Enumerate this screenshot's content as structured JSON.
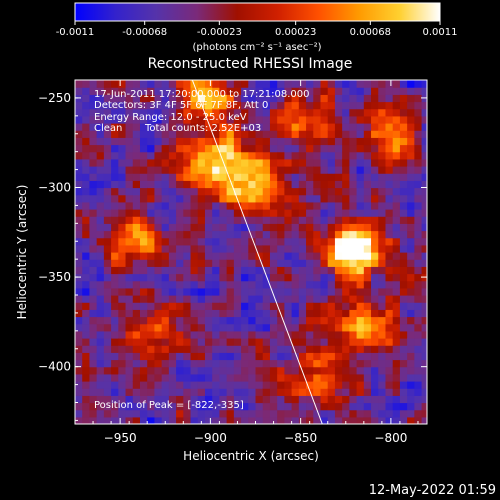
{
  "colorbar": {
    "tick_labels": [
      "-0.0011",
      "-0.00068",
      "-0.00023",
      "0.00023",
      "0.00068",
      "0.0011"
    ],
    "tick_values": [
      -0.0011,
      -0.00068,
      -0.00023,
      0.00023,
      0.00068,
      0.0011
    ],
    "range": [
      -0.0011,
      0.0011
    ],
    "unit_label": "(photons cm⁻² s⁻¹ asec⁻²)",
    "colors": [
      "#0000ff",
      "#3322cc",
      "#5533aa",
      "#7a2a7a",
      "#a01000",
      "#d02000",
      "#ff5000",
      "#ff9a00",
      "#ffd030",
      "#ffffff"
    ]
  },
  "chart_data": {
    "type": "heatmap",
    "title": "Reconstructed RHESSI Image",
    "xlabel": "Heliocentric X (arcsec)",
    "ylabel": "Heliocentric Y (arcsec)",
    "xlim": [
      -975,
      -780
    ],
    "ylim": [
      -432,
      -240
    ],
    "x_ticks": [
      -950,
      -900,
      -850,
      -800
    ],
    "x_tick_labels": [
      "−950",
      "−900",
      "−850",
      "−800"
    ],
    "y_ticks": [
      -250,
      -300,
      -350,
      -400
    ],
    "y_tick_labels": [
      "−250",
      "−300",
      "−350",
      "−400"
    ],
    "peak": [
      -822,
      -335
    ],
    "limb_line": [
      [
        -910,
        -240
      ],
      [
        -838,
        -432
      ]
    ],
    "annotations": [
      "17-Jun-2011 17:20:00.000 to 17:21:08.000",
      "Detectors: 3F 4F 5F 6F 7F 8F, Att 0",
      "Energy Range: 12.0 - 25.0 keV",
      "Clean",
      "Total counts: 2.52E+03",
      "Position of Peak = [-822,-335]"
    ],
    "bright_sources": [
      {
        "x": -822,
        "y": -335,
        "level": 1.0
      },
      {
        "x": -897,
        "y": -290,
        "level": 0.85
      },
      {
        "x": -905,
        "y": -255,
        "level": 0.65
      },
      {
        "x": -875,
        "y": -300,
        "level": 0.7
      },
      {
        "x": -945,
        "y": -330,
        "level": 0.6
      },
      {
        "x": -815,
        "y": -380,
        "level": 0.55
      },
      {
        "x": -840,
        "y": -408,
        "level": 0.5
      },
      {
        "x": -932,
        "y": -385,
        "level": 0.5
      },
      {
        "x": -850,
        "y": -265,
        "level": 0.55
      },
      {
        "x": -800,
        "y": -275,
        "level": 0.45
      }
    ]
  },
  "footer": {
    "timestamp": "12-May-2022 01:59"
  }
}
